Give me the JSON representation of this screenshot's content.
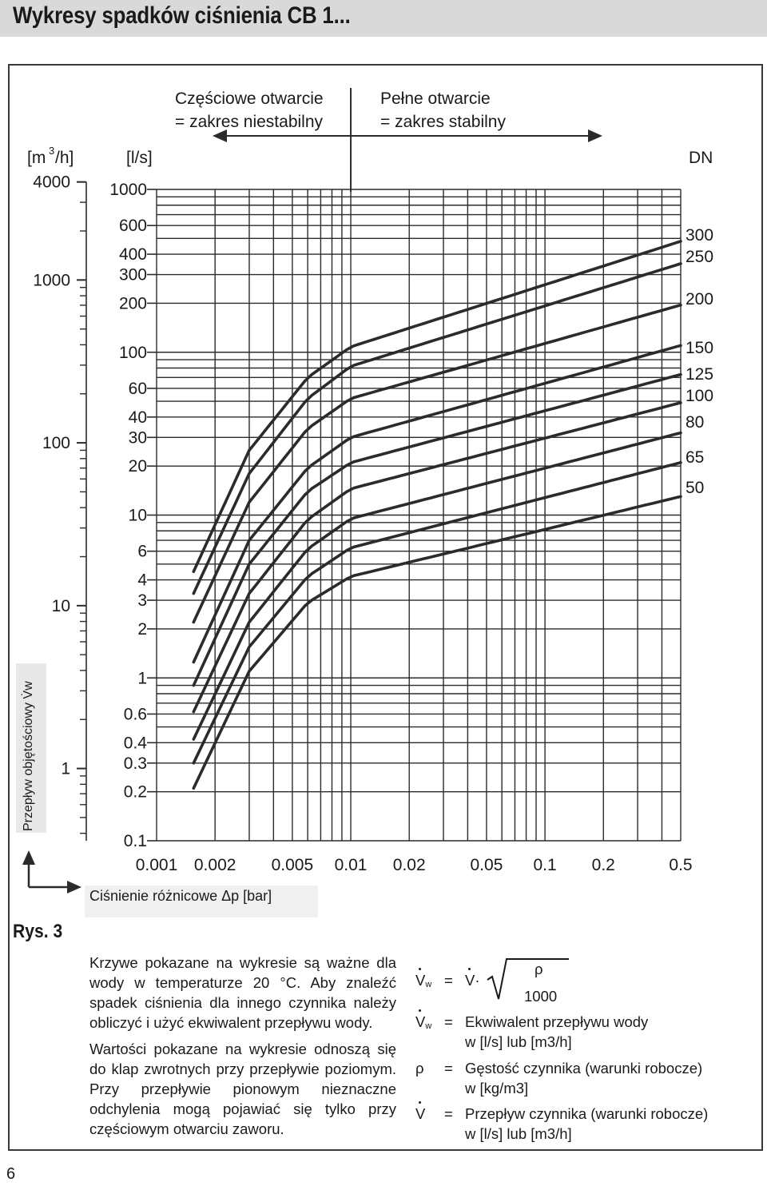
{
  "page_title": "Wykresy spadków ciśnienia CB 1...",
  "figure_label": "Rys. 3",
  "page_number": "6",
  "chart_data": {
    "type": "line",
    "x_scale": "log",
    "y_scale": "log",
    "xlim": [
      0.001,
      0.5
    ],
    "ylim": [
      0.1,
      1000
    ],
    "grid": true,
    "xlabel": "Ciśnienie różnicowe Δp [bar]",
    "ylabel": "Przepływ objętościowy V̇w",
    "unit_left": "[m3/h]",
    "unit_right": "[l/s]",
    "dn_label": "DN",
    "zone_partial": [
      "Częściowe otwarcie",
      "= zakres niestabilny"
    ],
    "zone_full": [
      "Pełne otwarcie",
      "= zakres stabilny"
    ],
    "zone_boundary_x": 0.01,
    "x_ticks": [
      0.001,
      0.002,
      0.005,
      0.01,
      0.02,
      0.05,
      0.1,
      0.2,
      0.5
    ],
    "x_tick_labels": [
      "0.001",
      "0.002",
      "0.005",
      "0.01",
      "0.02",
      "0.05",
      "0.1",
      "0.2",
      "0.5"
    ],
    "y_ticks_ls": [
      1000,
      600,
      400,
      300,
      200,
      100,
      60,
      40,
      30,
      20,
      10,
      6,
      4,
      3,
      2,
      1,
      0.6,
      0.4,
      0.3,
      0.2,
      0.1
    ],
    "y_tick_labels_ls": [
      "1000",
      "600",
      "400",
      "300",
      "200",
      "100",
      "60",
      "40",
      "30",
      "20",
      "10",
      "6",
      "4",
      "3",
      "2",
      "1",
      "0.6",
      "0.4",
      "0.3",
      "0.2",
      "0.1"
    ],
    "y_ticks_m3h": [
      4000,
      1000,
      100,
      10,
      1
    ],
    "y_tick_labels_m3h": [
      "4000",
      "1000",
      "100",
      "10",
      "1"
    ],
    "series": [
      {
        "name": "300",
        "x": [
          0.00155,
          0.003,
          0.006,
          0.01,
          0.5
        ],
        "y": [
          4.5,
          25,
          70,
          108,
          480
        ]
      },
      {
        "name": "250",
        "x": [
          0.00155,
          0.003,
          0.006,
          0.01,
          0.5
        ],
        "y": [
          3.3,
          18,
          52,
          82,
          350
        ]
      },
      {
        "name": "200",
        "x": [
          0.00155,
          0.003,
          0.006,
          0.01,
          0.5
        ],
        "y": [
          2.2,
          12,
          34,
          52,
          195
        ]
      },
      {
        "name": "150",
        "x": [
          0.00155,
          0.003,
          0.006,
          0.01,
          0.5
        ],
        "y": [
          1.25,
          7,
          19.5,
          30,
          110
        ]
      },
      {
        "name": "125",
        "x": [
          0.00155,
          0.003,
          0.006,
          0.01,
          0.5
        ],
        "y": [
          0.9,
          5,
          14,
          21,
          73
        ]
      },
      {
        "name": "100",
        "x": [
          0.00155,
          0.003,
          0.006,
          0.01,
          0.5
        ],
        "y": [
          0.62,
          3.3,
          9.4,
          14.5,
          49
        ]
      },
      {
        "name": "80",
        "x": [
          0.00155,
          0.003,
          0.006,
          0.01,
          0.5
        ],
        "y": [
          0.42,
          2.2,
          6.2,
          9.5,
          32
        ]
      },
      {
        "name": "65",
        "x": [
          0.00155,
          0.003,
          0.006,
          0.01,
          0.5
        ],
        "y": [
          0.3,
          1.55,
          4.2,
          6.3,
          21
        ]
      },
      {
        "name": "50",
        "x": [
          0.00155,
          0.003,
          0.006,
          0.01,
          0.5
        ],
        "y": [
          0.21,
          1.1,
          2.9,
          4.2,
          13
        ]
      }
    ],
    "dn_labels": [
      "300",
      "250",
      "200",
      "150",
      "125",
      "100",
      "80",
      "65",
      "50"
    ]
  },
  "notes": {
    "p1": "Krzywe pokazane na wykresie są ważne dla wody w temperaturze 20 °C. Aby znaleźć spadek ciśnienia dla innego czynnika należy obliczyć i użyć ekwiwalent przepływu wody.",
    "p2": "Wartości pokazane na wykresie odnoszą się do klap zwrotnych przy przepływie poziomym. Przy przepływie pionowym nieznaczne odchylenia mogą pojawiać się tylko przy częściowym otwarciu zaworu."
  },
  "formula": {
    "lhs": "V",
    "lhs_sub": "w",
    "eq": "=",
    "rhs_v": "V·",
    "numerator": "ρ",
    "denominator": "1000"
  },
  "legend": [
    {
      "symbol": "V",
      "sub": "w",
      "text1": "Ekwiwalent przepływu wody",
      "text2": "w [l/s] lub [m3/h]"
    },
    {
      "symbol": "ρ",
      "sub": "",
      "text1": "Gęstość czynnika (warunki robocze)",
      "text2": "w [kg/m3]"
    },
    {
      "symbol": "V",
      "sub": "",
      "text1": "Przepływ czynnika (warunki robocze)",
      "text2": "w [l/s] lub [m3/h]"
    }
  ],
  "colors": {
    "ink": "#2b2b2b",
    "header_bg": "#d9d9d9",
    "label_bg": "#e8e8e8"
  }
}
